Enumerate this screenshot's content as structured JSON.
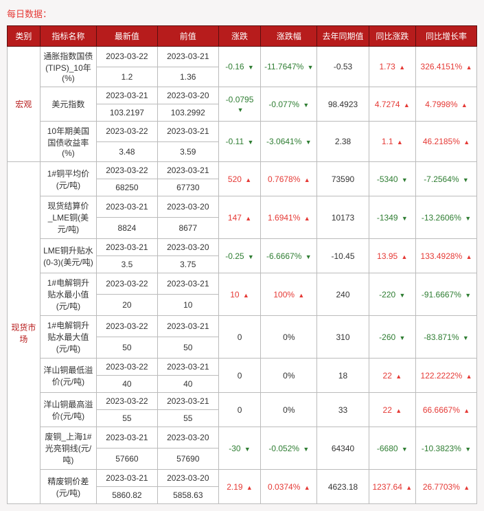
{
  "page_title": "每日数据：",
  "headers": [
    "类别",
    "指标名称",
    "最新值",
    "前值",
    "涨跌",
    "涨跌幅",
    "去年同期值",
    "同比涨跌",
    "同比增长率"
  ],
  "columns_width": [
    "7%",
    "12%",
    "13%",
    "13%",
    "9%",
    "12%",
    "11%",
    "10%",
    "13%"
  ],
  "groups": [
    {
      "category": "宏观",
      "rows": [
        {
          "name": "通胀指数国债(TIPS)_10年(%)",
          "latest_date": "2023-03-22",
          "prev_date": "2023-03-21",
          "latest_val": "1.2",
          "prev_val": "1.36",
          "chg": "-0.16",
          "chg_dir": "down",
          "chg_pct": "-11.7647%",
          "chg_pct_dir": "down",
          "last_year": "-0.53",
          "yoy_chg": "1.73",
          "yoy_chg_dir": "up",
          "yoy_pct": "326.4151%",
          "yoy_pct_dir": "up"
        },
        {
          "name": "美元指数",
          "latest_date": "2023-03-21",
          "prev_date": "2023-03-20",
          "latest_val": "103.2197",
          "prev_val": "103.2992",
          "chg": "-0.0795",
          "chg_dir": "down",
          "chg_pct": "-0.077%",
          "chg_pct_dir": "down",
          "last_year": "98.4923",
          "yoy_chg": "4.7274",
          "yoy_chg_dir": "up",
          "yoy_pct": "4.7998%",
          "yoy_pct_dir": "up"
        },
        {
          "name": "10年期美国国债收益率(%)",
          "latest_date": "2023-03-22",
          "prev_date": "2023-03-21",
          "latest_val": "3.48",
          "prev_val": "3.59",
          "chg": "-0.11",
          "chg_dir": "down",
          "chg_pct": "-3.0641%",
          "chg_pct_dir": "down",
          "last_year": "2.38",
          "yoy_chg": "1.1",
          "yoy_chg_dir": "up",
          "yoy_pct": "46.2185%",
          "yoy_pct_dir": "up"
        }
      ]
    },
    {
      "category": "现货市场",
      "rows": [
        {
          "name": "1#铜平均价(元/吨)",
          "latest_date": "2023-03-22",
          "prev_date": "2023-03-21",
          "latest_val": "68250",
          "prev_val": "67730",
          "chg": "520",
          "chg_dir": "up",
          "chg_pct": "0.7678%",
          "chg_pct_dir": "up",
          "last_year": "73590",
          "yoy_chg": "-5340",
          "yoy_chg_dir": "down",
          "yoy_pct": "-7.2564%",
          "yoy_pct_dir": "down"
        },
        {
          "name": "现货结算价_LME铜(美元/吨)",
          "latest_date": "2023-03-21",
          "prev_date": "2023-03-20",
          "latest_val": "8824",
          "prev_val": "8677",
          "chg": "147",
          "chg_dir": "up",
          "chg_pct": "1.6941%",
          "chg_pct_dir": "up",
          "last_year": "10173",
          "yoy_chg": "-1349",
          "yoy_chg_dir": "down",
          "yoy_pct": "-13.2606%",
          "yoy_pct_dir": "down"
        },
        {
          "name": "LME铜升贴水(0-3)(美元/吨)",
          "latest_date": "2023-03-21",
          "prev_date": "2023-03-20",
          "latest_val": "3.5",
          "prev_val": "3.75",
          "chg": "-0.25",
          "chg_dir": "down",
          "chg_pct": "-6.6667%",
          "chg_pct_dir": "down",
          "last_year": "-10.45",
          "yoy_chg": "13.95",
          "yoy_chg_dir": "up",
          "yoy_pct": "133.4928%",
          "yoy_pct_dir": "up"
        },
        {
          "name": "1#电解铜升贴水最小值(元/吨)",
          "latest_date": "2023-03-22",
          "prev_date": "2023-03-21",
          "latest_val": "20",
          "prev_val": "10",
          "chg": "10",
          "chg_dir": "up",
          "chg_pct": "100%",
          "chg_pct_dir": "up",
          "last_year": "240",
          "yoy_chg": "-220",
          "yoy_chg_dir": "down",
          "yoy_pct": "-91.6667%",
          "yoy_pct_dir": "down"
        },
        {
          "name": "1#电解铜升贴水最大值(元/吨)",
          "latest_date": "2023-03-22",
          "prev_date": "2023-03-21",
          "latest_val": "50",
          "prev_val": "50",
          "chg": "0",
          "chg_dir": "plain",
          "chg_pct": "0%",
          "chg_pct_dir": "plain",
          "last_year": "310",
          "yoy_chg": "-260",
          "yoy_chg_dir": "down",
          "yoy_pct": "-83.871%",
          "yoy_pct_dir": "down"
        },
        {
          "name": "洋山铜最低溢价(元/吨)",
          "latest_date": "2023-03-22",
          "prev_date": "2023-03-21",
          "latest_val": "40",
          "prev_val": "40",
          "chg": "0",
          "chg_dir": "plain",
          "chg_pct": "0%",
          "chg_pct_dir": "plain",
          "last_year": "18",
          "yoy_chg": "22",
          "yoy_chg_dir": "up",
          "yoy_pct": "122.2222%",
          "yoy_pct_dir": "up"
        },
        {
          "name": "洋山铜最高溢价(元/吨)",
          "latest_date": "2023-03-22",
          "prev_date": "2023-03-21",
          "latest_val": "55",
          "prev_val": "55",
          "chg": "0",
          "chg_dir": "plain",
          "chg_pct": "0%",
          "chg_pct_dir": "plain",
          "last_year": "33",
          "yoy_chg": "22",
          "yoy_chg_dir": "up",
          "yoy_pct": "66.6667%",
          "yoy_pct_dir": "up"
        },
        {
          "name": "废铜_上海1#光亮铜线(元/吨)",
          "latest_date": "2023-03-21",
          "prev_date": "2023-03-20",
          "latest_val": "57660",
          "prev_val": "57690",
          "chg": "-30",
          "chg_dir": "down",
          "chg_pct": "-0.052%",
          "chg_pct_dir": "down",
          "last_year": "64340",
          "yoy_chg": "-6680",
          "yoy_chg_dir": "down",
          "yoy_pct": "-10.3823%",
          "yoy_pct_dir": "down"
        },
        {
          "name": "精废铜价差(元/吨)",
          "latest_date": "2023-03-21",
          "prev_date": "2023-03-20",
          "latest_val": "5860.82",
          "prev_val": "5858.63",
          "chg": "2.19",
          "chg_dir": "up",
          "chg_pct": "0.0374%",
          "chg_pct_dir": "up",
          "last_year": "4623.18",
          "yoy_chg": "1237.64",
          "yoy_chg_dir": "up",
          "yoy_pct": "26.7703%",
          "yoy_pct_dir": "up"
        }
      ]
    }
  ]
}
